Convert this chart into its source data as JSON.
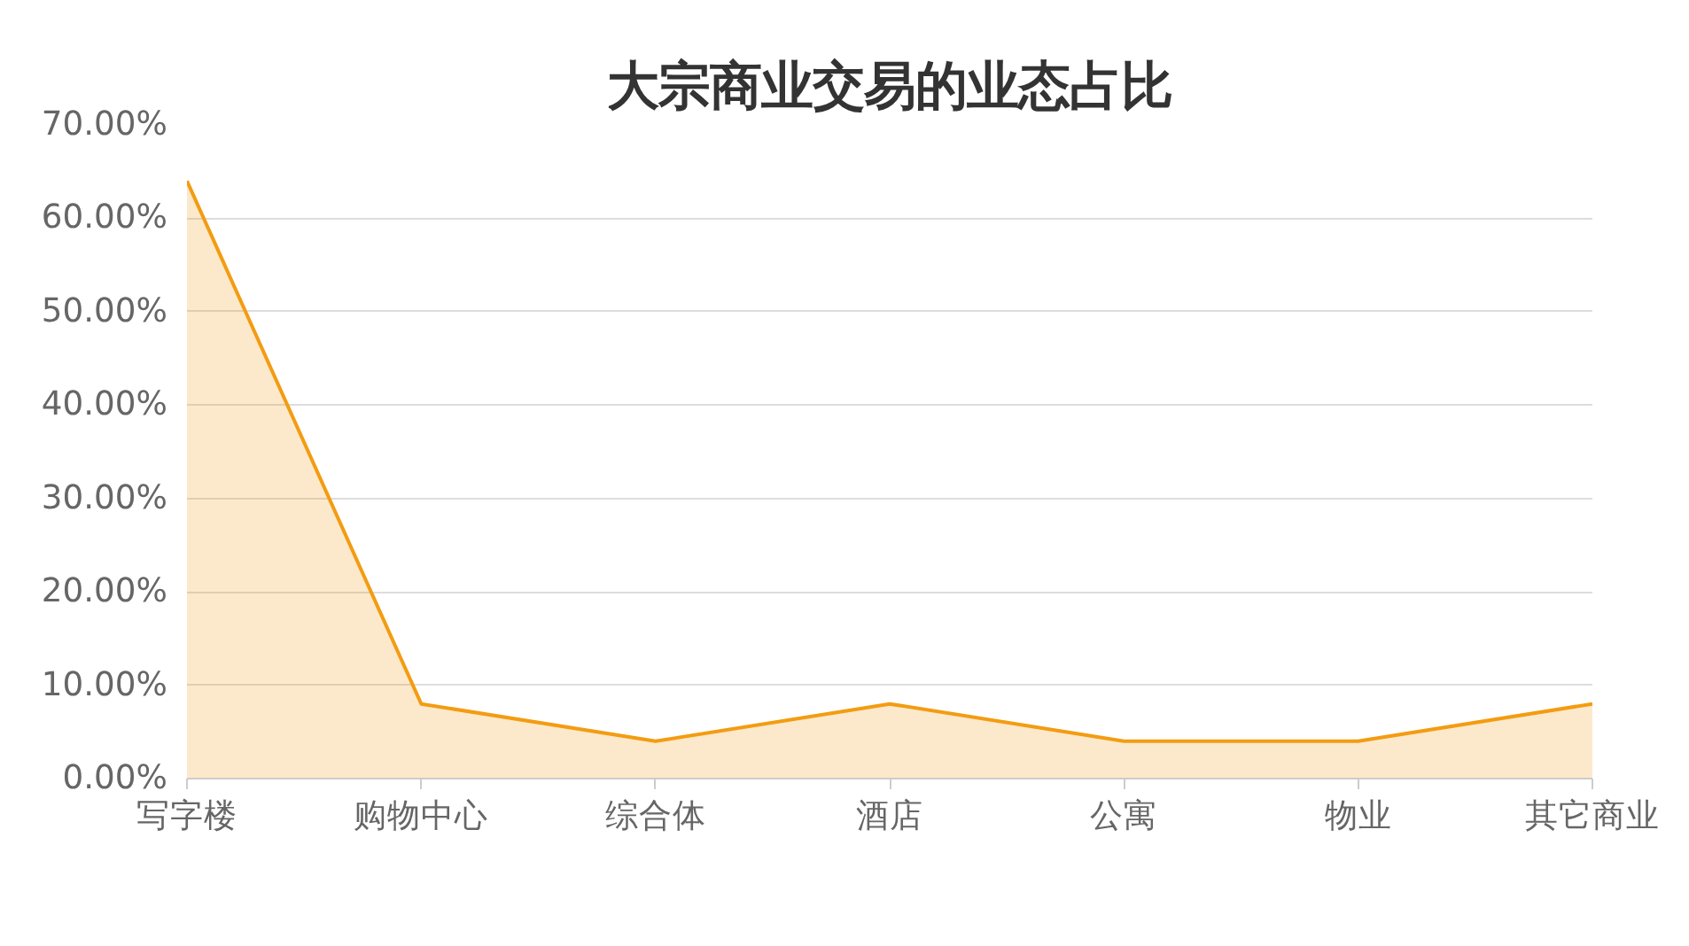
{
  "chart_data": {
    "type": "area",
    "title": "大宗商业交易的业态占比",
    "categories": [
      "写字楼",
      "购物中心",
      "综合体",
      "酒店",
      "公寓",
      "物业",
      "其它商业"
    ],
    "series": [
      {
        "color": "#f39c12",
        "values": [
          64,
          8,
          4,
          8,
          4,
          4,
          8
        ]
      }
    ],
    "ylim": [
      0,
      70
    ],
    "yticks": [
      {
        "value": 0,
        "label": "0.00%"
      },
      {
        "value": 10,
        "label": "10.00%"
      },
      {
        "value": 20,
        "label": "20.00%"
      },
      {
        "value": 30,
        "label": "30.00%"
      },
      {
        "value": 40,
        "label": "40.00%"
      },
      {
        "value": 50,
        "label": "50.00%"
      },
      {
        "value": 60,
        "label": "60.00%"
      },
      {
        "value": 70,
        "label": "70.00%"
      }
    ],
    "grid": "y"
  }
}
